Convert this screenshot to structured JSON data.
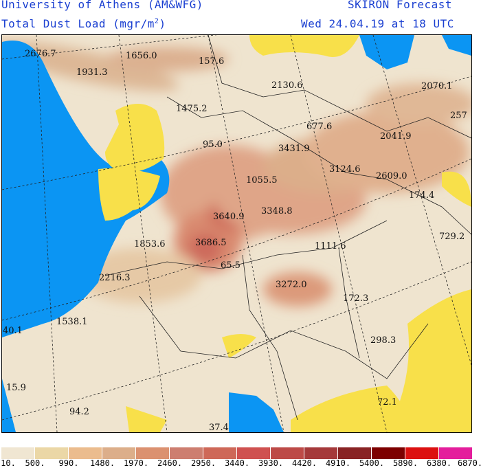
{
  "header": {
    "institution": "University of Athens (AM&WFG)",
    "product": "SKIRON Forecast",
    "variable": "Total Dust Load (mgr/m",
    "variable_sup": "2",
    "variable_end": ")",
    "valid_time": "Wed 24.04.19 at 18 UTC"
  },
  "map": {
    "colors": {
      "ocean": "#0b95f3",
      "low": "#f8e04a",
      "background": "#efe4cf"
    },
    "labels": [
      "2676.7",
      "1656.0",
      "157.6",
      "1931.3",
      "2130.6",
      "2070.1",
      "1475.2",
      "677.6",
      "257",
      "95.0",
      "3431.9",
      "2041.9",
      "3124.6",
      "1055.5",
      "2609.0",
      "174.4",
      "3640.9",
      "3348.8",
      "3686.5",
      "1853.6",
      "729.2",
      "1111.6",
      "65.5",
      "2216.3",
      "3272.0",
      "172.3",
      "1538.1",
      "40.1",
      "298.3",
      "15.9",
      "72.1",
      "94.2",
      "37.4"
    ]
  },
  "legend": {
    "ticks": [
      "10.",
      "500.",
      "990.",
      "1480.",
      "1970.",
      "2460.",
      "2950.",
      "3440.",
      "3930.",
      "4420.",
      "4910.",
      "5400.",
      "5890.",
      "6380.",
      "6870."
    ],
    "colors": [
      "#f0e6d2",
      "#ebd7a6",
      "#ebbc8e",
      "#dcae8a",
      "#db9170",
      "#cd7e70",
      "#ce6858",
      "#cf5150",
      "#bd4a47",
      "#a5393a",
      "#892324",
      "#7d0000",
      "#dc1010",
      "#e41e9c"
    ]
  }
}
